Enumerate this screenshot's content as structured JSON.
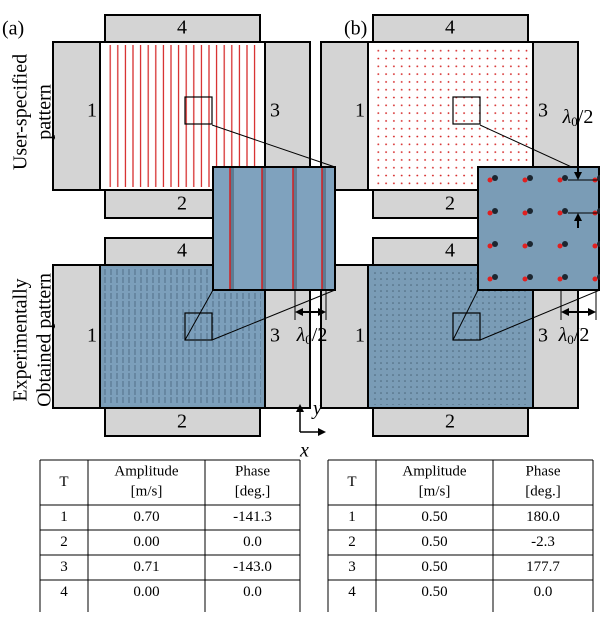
{
  "panels": [
    {
      "label": "(a)",
      "rows": [
        {
          "transducers": [
            "1",
            "2",
            "3",
            "4"
          ]
        },
        {
          "transducers": [
            "1",
            "2",
            "3",
            "4"
          ]
        }
      ]
    },
    {
      "label": "(b)",
      "rows": [
        {
          "transducers": [
            "1",
            "2",
            "3",
            "4"
          ]
        },
        {
          "transducers": [
            "1",
            "2",
            "3",
            "4"
          ]
        }
      ]
    }
  ],
  "row_labels": [
    [
      "User-specified",
      "pattern"
    ],
    [
      "Experimentally",
      "Obtained pattern"
    ]
  ],
  "wavelength_label": {
    "base": "λ",
    "subscript": "0",
    "suffix": "/2"
  },
  "axes": {
    "x": "x",
    "y": "y"
  },
  "tables": [
    {
      "header": [
        [
          "T"
        ],
        [
          "Amplitude",
          "[m/s]"
        ],
        [
          "Phase",
          "[deg.]"
        ]
      ],
      "rows": [
        [
          "1",
          "0.70",
          "-141.3"
        ],
        [
          "2",
          "0.00",
          "0.0"
        ],
        [
          "3",
          "0.71",
          "-143.0"
        ],
        [
          "4",
          "0.00",
          "0.0"
        ]
      ]
    },
    {
      "header": [
        [
          "T"
        ],
        [
          "Amplitude",
          "[m/s]"
        ],
        [
          "Phase",
          "[deg.]"
        ]
      ],
      "rows": [
        [
          "1",
          "0.50",
          "180.0"
        ],
        [
          "2",
          "0.50",
          "-2.3"
        ],
        [
          "3",
          "0.50",
          "177.7"
        ],
        [
          "4",
          "0.50",
          "0.0"
        ]
      ]
    }
  ]
}
